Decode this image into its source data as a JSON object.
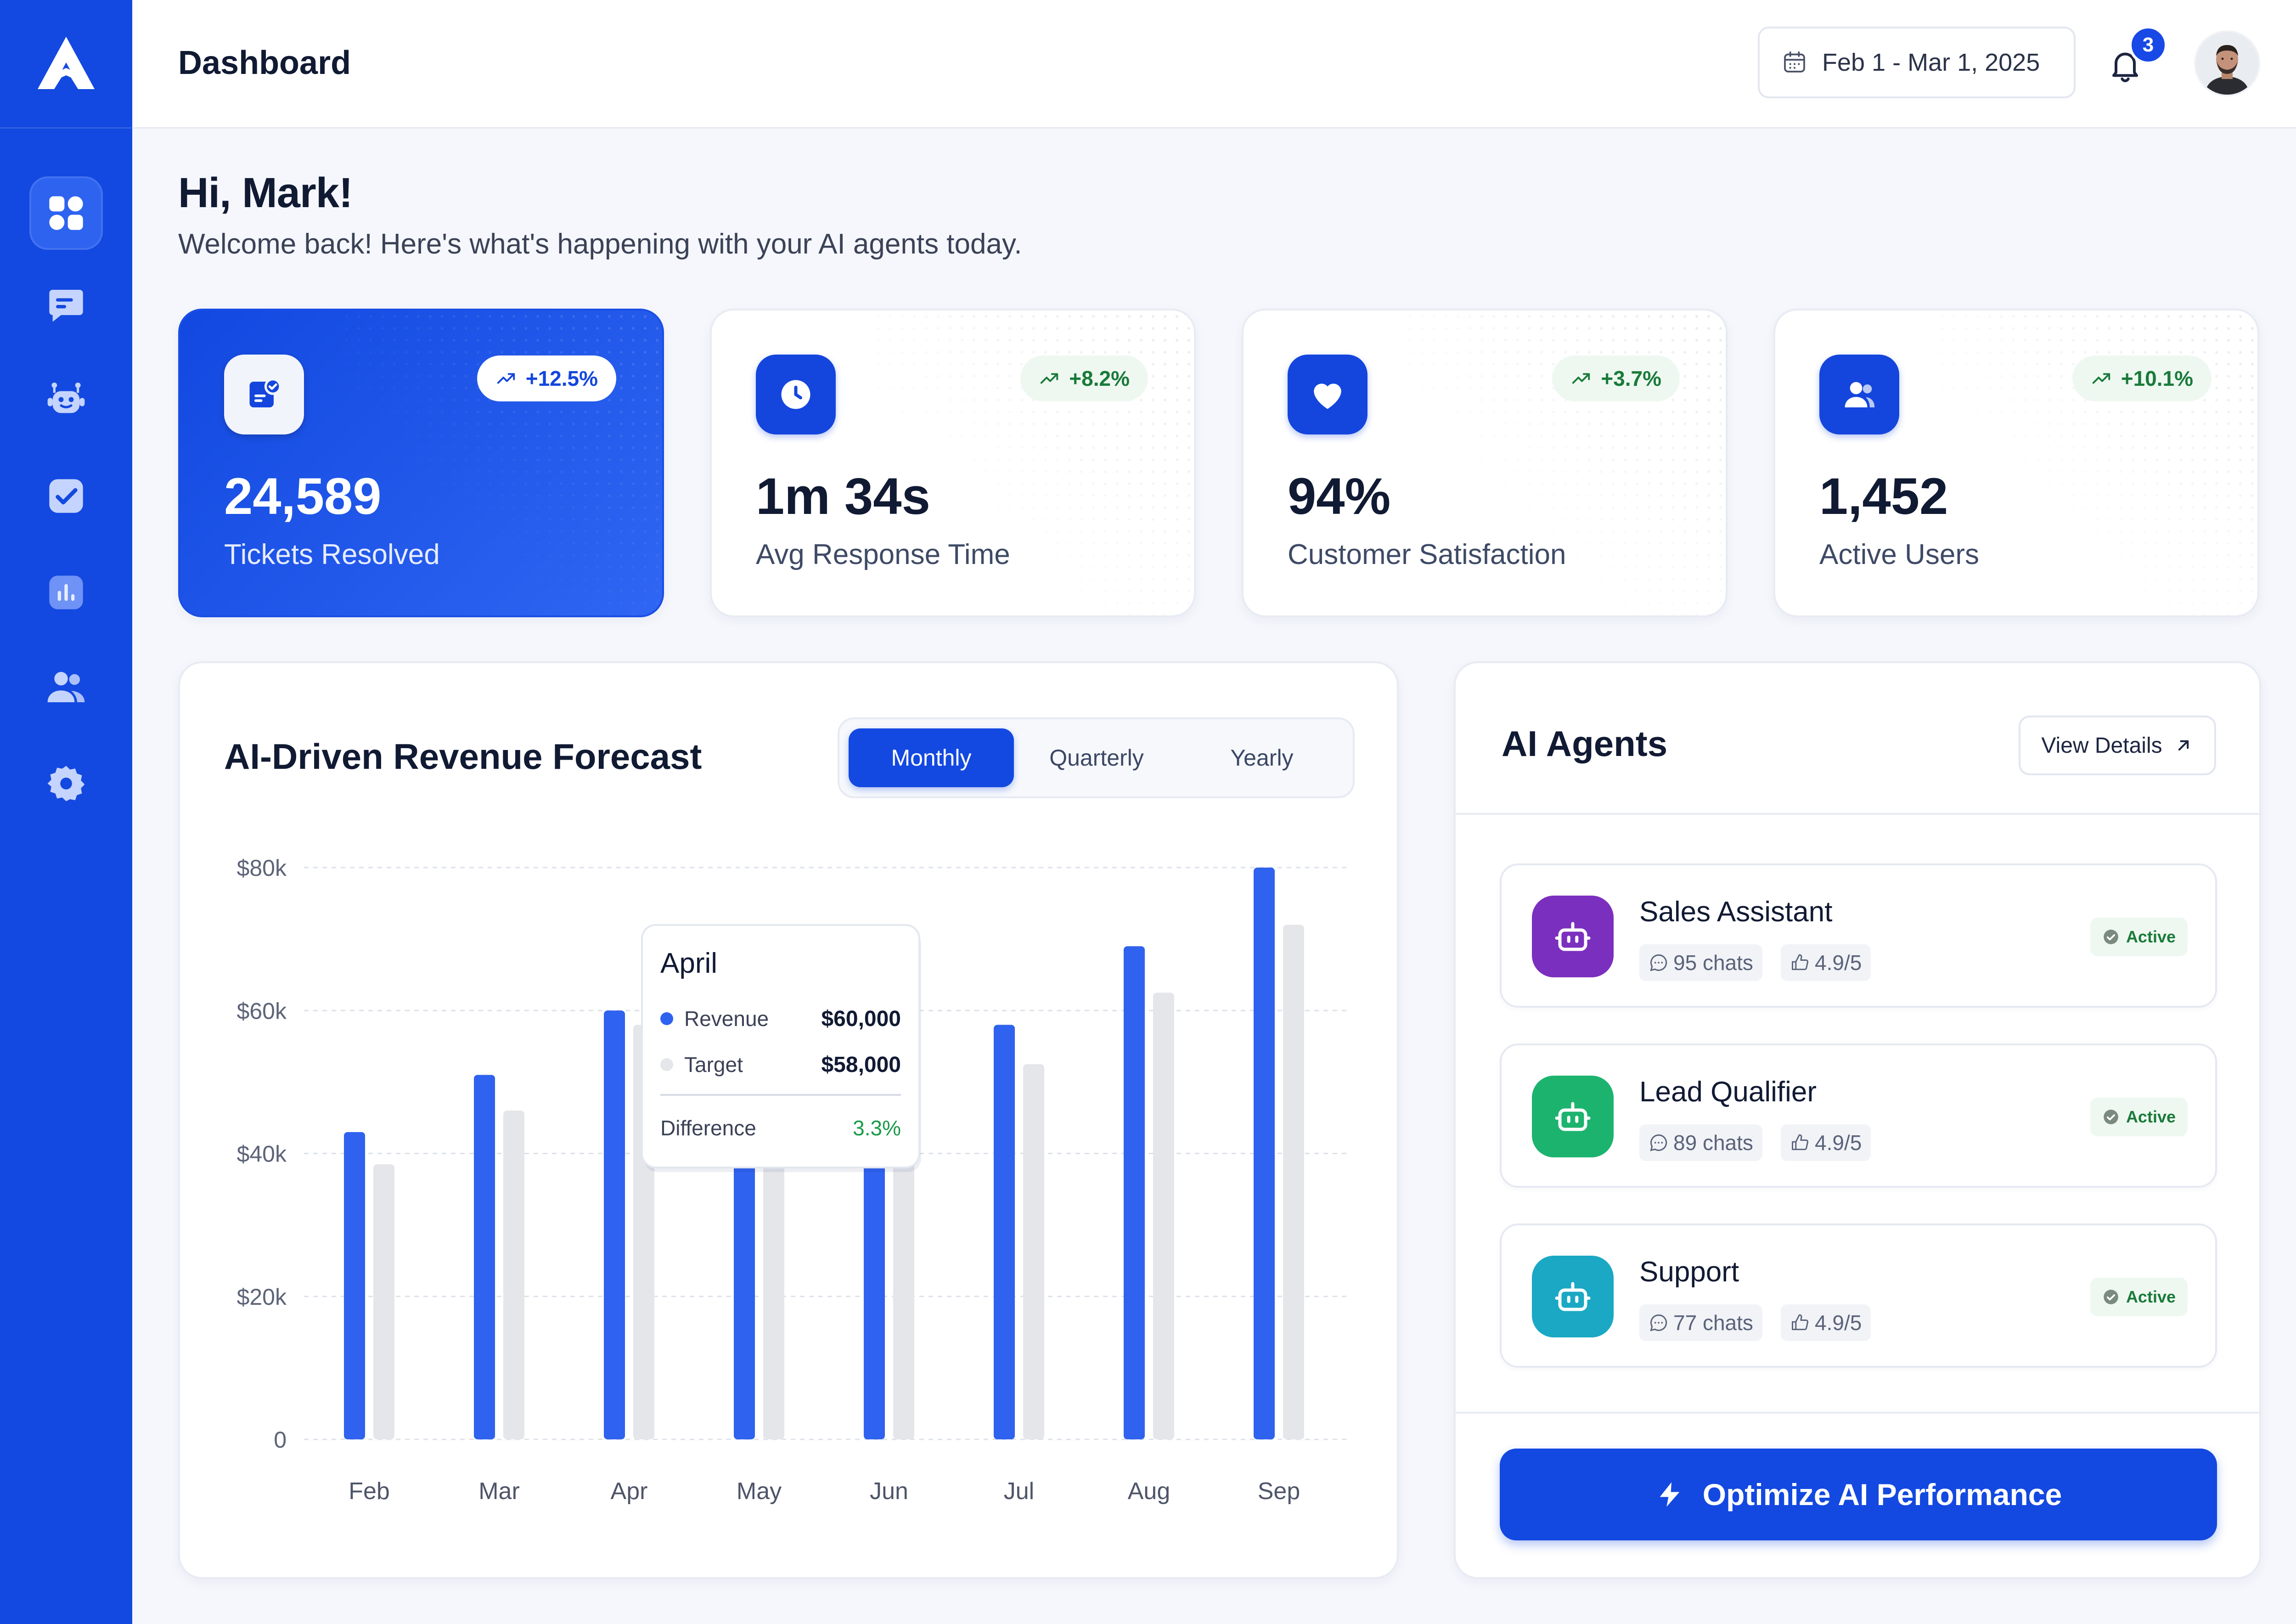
{
  "header": {
    "title": "Dashboard",
    "date_range": "Feb 1 - Mar 1, 2025",
    "notification_count": "3"
  },
  "sidebar": {
    "items": [
      {
        "name": "dashboard",
        "icon": "grid-icon",
        "active": true
      },
      {
        "name": "chats",
        "icon": "chat-icon",
        "active": false
      },
      {
        "name": "agents",
        "icon": "robot-icon",
        "active": false
      },
      {
        "name": "tasks",
        "icon": "checkbox-icon",
        "active": false
      },
      {
        "name": "analytics",
        "icon": "bar-chart-icon",
        "active": false
      },
      {
        "name": "users",
        "icon": "users-icon",
        "active": false
      },
      {
        "name": "settings",
        "icon": "gear-icon",
        "active": false
      }
    ]
  },
  "greeting": {
    "title": "Hi, Mark!",
    "subtitle": "Welcome back! Here's what's happening with your AI agents today."
  },
  "stats": [
    {
      "value": "24,589",
      "label": "Tickets Resolved",
      "trend": "+12.5%",
      "icon": "ticket-check-icon"
    },
    {
      "value": "1m 34s",
      "label": "Avg Response Time",
      "trend": "+8.2%",
      "icon": "clock-icon"
    },
    {
      "value": "94%",
      "label": "Customer Satisfaction",
      "trend": "+3.7%",
      "icon": "heart-icon"
    },
    {
      "value": "1,452",
      "label": "Active Users",
      "trend": "+10.1%",
      "icon": "users-icon"
    }
  ],
  "forecast": {
    "title": "AI-Driven Revenue Forecast",
    "tabs": [
      "Monthly",
      "Quarterly",
      "Yearly"
    ],
    "active_tab": "Monthly",
    "tooltip": {
      "month": "April",
      "revenue_label": "Revenue",
      "revenue_value": "$60,000",
      "target_label": "Target",
      "target_value": "$58,000",
      "difference_label": "Difference",
      "difference_value": "3.3%"
    }
  },
  "chart_data": {
    "type": "bar",
    "categories": [
      "Feb",
      "Mar",
      "Apr",
      "May",
      "Jun",
      "Jul",
      "Aug",
      "Sep"
    ],
    "series": [
      {
        "name": "Revenue",
        "values": [
          43000,
          51000,
          60000,
          49000,
          52000,
          58000,
          69000,
          80000
        ]
      },
      {
        "name": "Target",
        "values": [
          38500,
          46000,
          58000,
          45000,
          48000,
          52500,
          62500,
          72000
        ]
      }
    ],
    "yticks": [
      "0",
      "$20k",
      "$40k",
      "$60k",
      "$80k"
    ],
    "ylim": [
      0,
      80000
    ],
    "grid": true,
    "colors": {
      "Revenue": "#2f62ee",
      "Target": "#e4e6ea"
    }
  },
  "agents": {
    "title": "AI Agents",
    "view_details": "View Details",
    "items": [
      {
        "name": "Sales Assistant",
        "chats": "95 chats",
        "rating": "4.9/5",
        "status": "Active",
        "color": "#7b2fbe"
      },
      {
        "name": "Lead Qualifier",
        "chats": "89 chats",
        "rating": "4.9/5",
        "status": "Active",
        "color": "#1cb36e"
      },
      {
        "name": "Support",
        "chats": "77 chats",
        "rating": "4.9/5",
        "status": "Active",
        "color": "#1aa8c4"
      }
    ],
    "optimize_label": "Optimize AI Performance"
  }
}
